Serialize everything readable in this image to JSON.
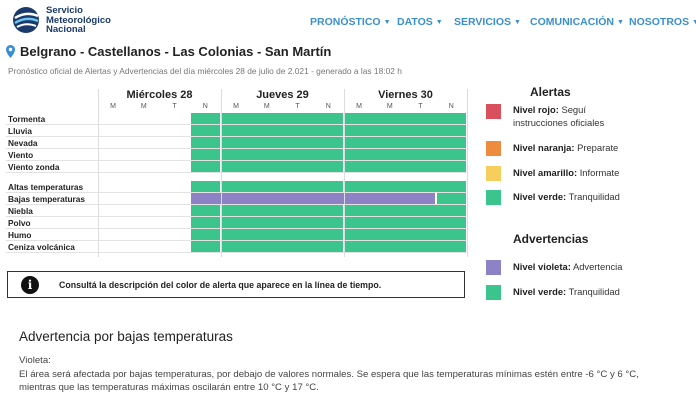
{
  "header": {
    "logo_line1": "Servicio",
    "logo_line2": "Meteorológico",
    "logo_line3": "Nacional",
    "nav": [
      {
        "label": "PRONÓSTICO"
      },
      {
        "label": "DATOS"
      },
      {
        "label": "SERVICIOS"
      },
      {
        "label": "COMUNICACIÓN"
      },
      {
        "label": "NOSOTROS"
      }
    ]
  },
  "title": "Belgrano - Castellanos - Las Colonias - San Martín",
  "subtitle": "Pronóstico oficial de Alertas y Advertencias del día miércoles 28 de julio de 2.021 - generado a las 18:02 h",
  "grid": {
    "days": [
      "Miércoles 28",
      "Jueves 29",
      "Viernes 30"
    ],
    "periods": [
      "M",
      "M",
      "T",
      "N"
    ],
    "hazards": [
      {
        "name": "Tormenta",
        "levels": [
          "none",
          "none",
          "none",
          "verde",
          "verde",
          "verde",
          "verde",
          "verde",
          "verde",
          "verde",
          "verde",
          "verde"
        ]
      },
      {
        "name": "Lluvia",
        "levels": [
          "none",
          "none",
          "none",
          "verde",
          "verde",
          "verde",
          "verde",
          "verde",
          "verde",
          "verde",
          "verde",
          "verde"
        ]
      },
      {
        "name": "Nevada",
        "levels": [
          "none",
          "none",
          "none",
          "verde",
          "verde",
          "verde",
          "verde",
          "verde",
          "verde",
          "verde",
          "verde",
          "verde"
        ]
      },
      {
        "name": "Viento",
        "levels": [
          "none",
          "none",
          "none",
          "verde",
          "verde",
          "verde",
          "verde",
          "verde",
          "verde",
          "verde",
          "verde",
          "verde"
        ]
      },
      {
        "name": "Viento zonda",
        "levels": [
          "none",
          "none",
          "none",
          "verde",
          "verde",
          "verde",
          "verde",
          "verde",
          "verde",
          "verde",
          "verde",
          "verde"
        ]
      },
      {
        "name": "Altas temperaturas",
        "levels": [
          "none",
          "none",
          "none",
          "verde",
          "verde",
          "verde",
          "verde",
          "verde",
          "verde",
          "verde",
          "verde",
          "verde"
        ]
      },
      {
        "name": "Bajas temperaturas",
        "levels": [
          "none",
          "none",
          "none",
          "violeta",
          "violeta",
          "violeta",
          "violeta",
          "violeta",
          "violeta",
          "violeta",
          "violeta",
          "verde"
        ]
      },
      {
        "name": "Niebla",
        "levels": [
          "none",
          "none",
          "none",
          "verde",
          "verde",
          "verde",
          "verde",
          "verde",
          "verde",
          "verde",
          "verde",
          "verde"
        ]
      },
      {
        "name": "Polvo",
        "levels": [
          "none",
          "none",
          "none",
          "verde",
          "verde",
          "verde",
          "verde",
          "verde",
          "verde",
          "verde",
          "verde",
          "verde"
        ]
      },
      {
        "name": "Humo",
        "levels": [
          "none",
          "none",
          "none",
          "verde",
          "verde",
          "verde",
          "verde",
          "verde",
          "verde",
          "verde",
          "verde",
          "verde"
        ]
      },
      {
        "name": "Ceniza volcánica",
        "levels": [
          "none",
          "none",
          "none",
          "verde",
          "verde",
          "verde",
          "verde",
          "verde",
          "verde",
          "verde",
          "verde",
          "verde"
        ]
      }
    ]
  },
  "colors": {
    "verde": "#3cc48d",
    "violeta": "#8e82c6",
    "rojo": "#d94f5e",
    "naranja": "#ef8b3e",
    "amarillo": "#f7cd5e",
    "nav_blue": "#3a8fd1"
  },
  "info_text": "Consultá la descripción del color de alerta que aparece en la línea de tiempo.",
  "legend": {
    "alertas_heading": "Alertas",
    "alertas": [
      {
        "level": "Nivel rojo:",
        "desc": "Seguí instrucciones oficiales",
        "color": "rojo"
      },
      {
        "level": "Nivel naranja:",
        "desc": "Preparate",
        "color": "naranja"
      },
      {
        "level": "Nivel amarillo:",
        "desc": "Informate",
        "color": "amarillo"
      },
      {
        "level": "Nivel verde:",
        "desc": "Tranquilidad",
        "color": "verde"
      }
    ],
    "advertencias_heading": "Advertencias",
    "advertencias": [
      {
        "level": "Nivel violeta:",
        "desc": "Advertencia",
        "color": "violeta"
      },
      {
        "level": "Nivel verde:",
        "desc": "Tranquilidad",
        "color": "verde"
      }
    ]
  },
  "warning": {
    "title": "Advertencia por bajas temperaturas",
    "label": "Violeta:",
    "line1": "El área será afectada por bajas temperaturas, por debajo de valores normales. Se espera que las temperaturas mínimas estén entre -6 °C y 6 °C,",
    "line2": "mientras que las temperaturas máximas oscilarán entre 10 °C y 17 °C."
  }
}
